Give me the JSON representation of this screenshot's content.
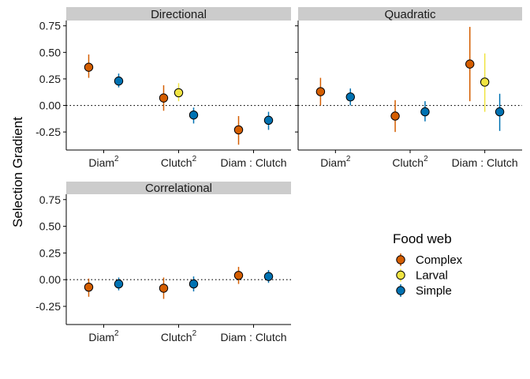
{
  "chart_data": {
    "type": "scatter",
    "ylabel": "Selection Gradient",
    "ylim": [
      -0.42,
      0.8
    ],
    "yticks": [
      -0.25,
      0.0,
      0.25,
      0.5,
      0.75
    ],
    "ytick_labels": [
      "-0.25",
      "0.00",
      "0.25",
      "0.50",
      "0.75"
    ],
    "reference_line_y": 0,
    "categories": [
      "Diam^2",
      "Clutch^2",
      "Diam : Clutch"
    ],
    "legend": {
      "title": "Food web",
      "entries": [
        {
          "name": "Complex",
          "color": "#D55E00"
        },
        {
          "name": "Larval",
          "color": "#F0E442"
        },
        {
          "name": "Simple",
          "color": "#0072B2"
        }
      ]
    },
    "panels": [
      {
        "title": "Directional",
        "points": [
          {
            "category": "Diam^2",
            "series": "Complex",
            "y": 0.36,
            "low": 0.26,
            "high": 0.48
          },
          {
            "category": "Diam^2",
            "series": "Simple",
            "y": 0.23,
            "low": 0.17,
            "high": 0.3
          },
          {
            "category": "Clutch^2",
            "series": "Complex",
            "y": 0.07,
            "low": -0.05,
            "high": 0.19
          },
          {
            "category": "Clutch^2",
            "series": "Larval",
            "y": 0.12,
            "low": 0.04,
            "high": 0.21
          },
          {
            "category": "Clutch^2",
            "series": "Simple",
            "y": -0.09,
            "low": -0.17,
            "high": -0.02
          },
          {
            "category": "Diam : Clutch",
            "series": "Complex",
            "y": -0.23,
            "low": -0.37,
            "high": -0.1
          },
          {
            "category": "Diam : Clutch",
            "series": "Simple",
            "y": -0.14,
            "low": -0.23,
            "high": -0.06
          }
        ]
      },
      {
        "title": "Quadratic",
        "points": [
          {
            "category": "Diam^2",
            "series": "Complex",
            "y": 0.13,
            "low": 0.0,
            "high": 0.26
          },
          {
            "category": "Diam^2",
            "series": "Simple",
            "y": 0.08,
            "low": 0.0,
            "high": 0.16
          },
          {
            "category": "Clutch^2",
            "series": "Complex",
            "y": -0.1,
            "low": -0.25,
            "high": 0.05
          },
          {
            "category": "Clutch^2",
            "series": "Simple",
            "y": -0.06,
            "low": -0.15,
            "high": 0.04
          },
          {
            "category": "Diam : Clutch",
            "series": "Complex",
            "y": 0.39,
            "low": 0.04,
            "high": 0.74
          },
          {
            "category": "Diam : Clutch",
            "series": "Larval",
            "y": 0.22,
            "low": -0.06,
            "high": 0.49
          },
          {
            "category": "Diam : Clutch",
            "series": "Simple",
            "y": -0.06,
            "low": -0.24,
            "high": 0.11
          }
        ]
      },
      {
        "title": "Correlational",
        "points": [
          {
            "category": "Diam^2",
            "series": "Complex",
            "y": -0.07,
            "low": -0.16,
            "high": 0.01
          },
          {
            "category": "Diam^2",
            "series": "Simple",
            "y": -0.04,
            "low": -0.1,
            "high": 0.02
          },
          {
            "category": "Clutch^2",
            "series": "Complex",
            "y": -0.08,
            "low": -0.18,
            "high": 0.02
          },
          {
            "category": "Clutch^2",
            "series": "Simple",
            "y": -0.04,
            "low": -0.11,
            "high": 0.03
          },
          {
            "category": "Diam : Clutch",
            "series": "Complex",
            "y": 0.04,
            "low": -0.04,
            "high": 0.12
          },
          {
            "category": "Diam : Clutch",
            "series": "Simple",
            "y": 0.03,
            "low": -0.03,
            "high": 0.09
          }
        ]
      }
    ]
  }
}
